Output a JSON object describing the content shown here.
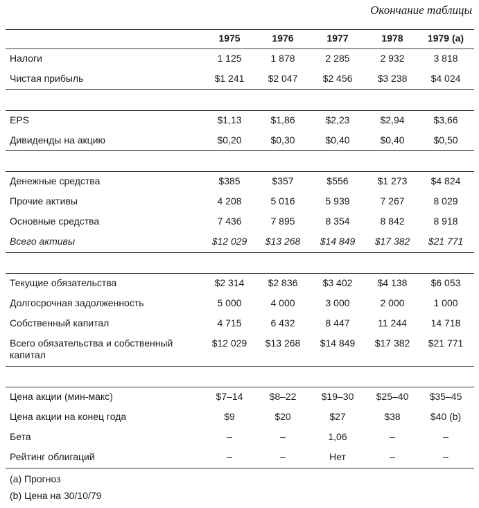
{
  "caption": "Окончание таблицы",
  "table": {
    "header": [
      "1975",
      "1976",
      "1977",
      "1978",
      "1979 (a)"
    ],
    "groups": [
      {
        "rows": [
          {
            "label": "Налоги",
            "values": [
              "1 125",
              "1 878",
              "2 285",
              "2 932",
              "3 818"
            ]
          },
          {
            "label": "Чистая прибыль",
            "values": [
              "$1 241",
              "$2 047",
              "$2 456",
              "$3 238",
              "$4 024"
            ]
          }
        ]
      },
      {
        "rows": [
          {
            "label": "EPS",
            "values": [
              "$1,13",
              "$1,86",
              "$2,23",
              "$2,94",
              "$3,66"
            ]
          },
          {
            "label": "Дивиденды на акцию",
            "values": [
              "$0,20",
              "$0,30",
              "$0,40",
              "$0,40",
              "$0,50"
            ]
          }
        ]
      },
      {
        "rows": [
          {
            "label": "Денежные средства",
            "values": [
              "$385",
              "$357",
              "$556",
              "$1 273",
              "$4 824"
            ]
          },
          {
            "label": "Прочие активы",
            "values": [
              "4 208",
              "5 016",
              "5 939",
              "7 267",
              "8 029"
            ]
          },
          {
            "label": "Основные средства",
            "values": [
              "7 436",
              "7 895",
              "8 354",
              "8 842",
              "8 918"
            ]
          },
          {
            "label": "Всего активы",
            "values": [
              "$12 029",
              "$13 268",
              "$14 849",
              "$17 382",
              "$21 771"
            ],
            "style": "italic"
          }
        ]
      },
      {
        "rows": [
          {
            "label": "Текущие обязательства",
            "values": [
              "$2 314",
              "$2 836",
              "$3 402",
              "$4 138",
              "$6 053"
            ]
          },
          {
            "label": "Долгосрочная задолженность",
            "values": [
              "5 000",
              "4 000",
              "3 000",
              "2 000",
              "1 000"
            ]
          },
          {
            "label": "Собственный капитал",
            "values": [
              "4 715",
              "6 432",
              "8 447",
              "11 244",
              "14 718"
            ]
          },
          {
            "label": "Всего обязательства и собственный капитал",
            "values": [
              "$12 029",
              "$13 268",
              "$14 849",
              "$17 382",
              "$21 771"
            ]
          }
        ]
      },
      {
        "rows": [
          {
            "label": "Цена акции (мин-макс)",
            "values": [
              "$7–14",
              "$8–22",
              "$19–30",
              "$25–40",
              "$35–45"
            ]
          },
          {
            "label": "Цена акции на конец года",
            "values": [
              "$9",
              "$20",
              "$27",
              "$38",
              "$40 (b)"
            ]
          },
          {
            "label": "Бета",
            "values": [
              "–",
              "–",
              "1,06",
              "–",
              "–"
            ]
          },
          {
            "label": "Рейтинг облигаций",
            "values": [
              "–",
              "–",
              "Нет",
              "–",
              "–"
            ]
          }
        ]
      }
    ]
  },
  "notes": [
    "(a) Прогноз",
    "(b) Цена на 30/10/79"
  ]
}
